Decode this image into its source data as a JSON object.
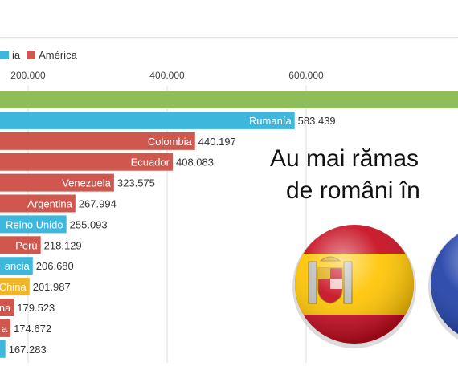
{
  "legend": [
    {
      "label": "ia",
      "color": "#3eb7dd"
    },
    {
      "label": "América",
      "color": "#d0574d"
    }
  ],
  "colors": {
    "europe": "#3eb7dd",
    "america": "#d0574d",
    "asia": "#f0b429",
    "top": "#8fbd5a"
  },
  "overlay": {
    "line1": "Au mai rămas",
    "line2": "de români în"
  },
  "chart_data": {
    "type": "bar",
    "orientation": "horizontal",
    "xlim": [
      165000,
      700000
    ],
    "ticks": [
      "200.000",
      "400.000",
      "600.000"
    ],
    "tick_values": [
      200000,
      400000,
      600000
    ],
    "bars": [
      {
        "label": "",
        "value": null,
        "value_label": "",
        "group": "top"
      },
      {
        "label": "Rumanía",
        "value": 583439,
        "value_label": "583.439",
        "group": "europe"
      },
      {
        "label": "Colombia",
        "value": 440197,
        "value_label": "440.197",
        "group": "america"
      },
      {
        "label": "Ecuador",
        "value": 408083,
        "value_label": "408.083",
        "group": "america"
      },
      {
        "label": "Venezuela",
        "value": 323575,
        "value_label": "323.575",
        "group": "america"
      },
      {
        "label": "Argentina",
        "value": 267994,
        "value_label": "267.994",
        "group": "america"
      },
      {
        "label": "Reino Unido",
        "value": 255093,
        "value_label": "255.093",
        "group": "europe"
      },
      {
        "label": "Perú",
        "value": 218129,
        "value_label": "218.129",
        "group": "america"
      },
      {
        "label": "ancia",
        "value": 206680,
        "value_label": "206.680",
        "group": "europe"
      },
      {
        "label": "China",
        "value": 201987,
        "value_label": "201.987",
        "group": "asia"
      },
      {
        "label": "na",
        "value": 179523,
        "value_label": "179.523",
        "group": "america"
      },
      {
        "label": "a",
        "value": 174672,
        "value_label": "174.672",
        "group": "america"
      },
      {
        "label": "",
        "value": 167283,
        "value_label": "167.283",
        "group": "europe"
      }
    ]
  }
}
